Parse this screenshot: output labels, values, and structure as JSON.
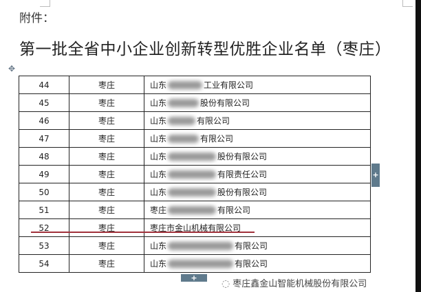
{
  "header": {
    "attachment_label": "附件：",
    "title": "第一批全省中小企业创新转型优胜企业名单（枣庄）"
  },
  "table": {
    "rows": [
      {
        "no": "44",
        "city": "枣庄",
        "prefix": "山东",
        "suffix": "工业有限公司"
      },
      {
        "no": "45",
        "city": "枣庄",
        "prefix": "山东",
        "suffix": "股份有限公司"
      },
      {
        "no": "46",
        "city": "枣庄",
        "prefix": "山东",
        "suffix": "有限公司"
      },
      {
        "no": "47",
        "city": "枣庄",
        "prefix": "山东",
        "suffix": "有限公司"
      },
      {
        "no": "48",
        "city": "枣庄",
        "prefix": "山东",
        "suffix": "股份有限公司"
      },
      {
        "no": "49",
        "city": "枣庄",
        "prefix": "山东",
        "suffix": "有限责任公司"
      },
      {
        "no": "50",
        "city": "枣庄",
        "prefix": "山东",
        "suffix": "股份有限公司"
      },
      {
        "no": "51",
        "city": "枣庄",
        "prefix": "枣庄",
        "suffix": "有限公司"
      },
      {
        "no": "52",
        "city": "枣庄",
        "prefix": "枣庄市金山机械有限公司",
        "suffix": ""
      },
      {
        "no": "53",
        "city": "枣庄",
        "prefix": "山东",
        "suffix": "有限公司"
      },
      {
        "no": "54",
        "city": "枣庄",
        "prefix": "山东",
        "suffix": "有限公司"
      }
    ]
  },
  "controls": {
    "add_row": "+",
    "add_column": "+",
    "move_handle": "✥"
  },
  "watermark": "枣庄鑫金山智能机械股份有限公司",
  "colors": {
    "highlight_underline": "#a0303a",
    "tab": "#5f7a8c"
  }
}
